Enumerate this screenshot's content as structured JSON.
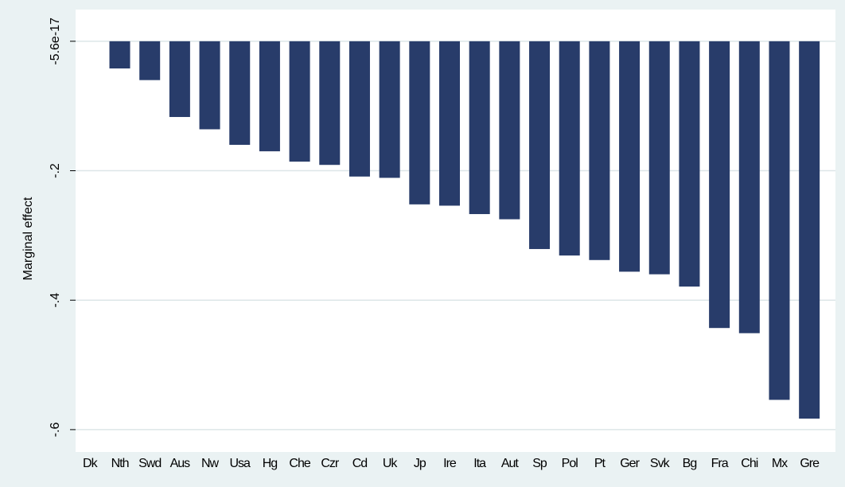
{
  "chart_data": {
    "type": "bar",
    "y_label": "Marginal effect",
    "categories": [
      "Dk",
      "Nth",
      "Swd",
      "Aus",
      "Nw",
      "Usa",
      "Hg",
      "Che",
      "Czr",
      "Cd",
      "Uk",
      "Jp",
      "Ire",
      "Ita",
      "Aut",
      "Sp",
      "Pol",
      "Pt",
      "Ger",
      "Svk",
      "Bg",
      "Fra",
      "Chi",
      "Mx",
      "Gre"
    ],
    "values": [
      0,
      -0.042,
      -0.06,
      -0.117,
      -0.136,
      -0.16,
      -0.17,
      -0.186,
      -0.191,
      -0.209,
      -0.211,
      -0.252,
      -0.254,
      -0.267,
      -0.275,
      -0.321,
      -0.331,
      -0.338,
      -0.356,
      -0.36,
      -0.379,
      -0.443,
      -0.451,
      -0.554,
      -0.583
    ],
    "color": "#283c6a",
    "ylim": [
      -0.637,
      0.049
    ],
    "yticks": [
      {
        "value": -5.6e-17,
        "label": "-5.6e-17"
      },
      {
        "value": -0.2,
        "label": "-.2"
      },
      {
        "value": -0.4,
        "label": "-.4"
      },
      {
        "value": -0.6,
        "label": "-.6"
      }
    ],
    "grid": true
  }
}
